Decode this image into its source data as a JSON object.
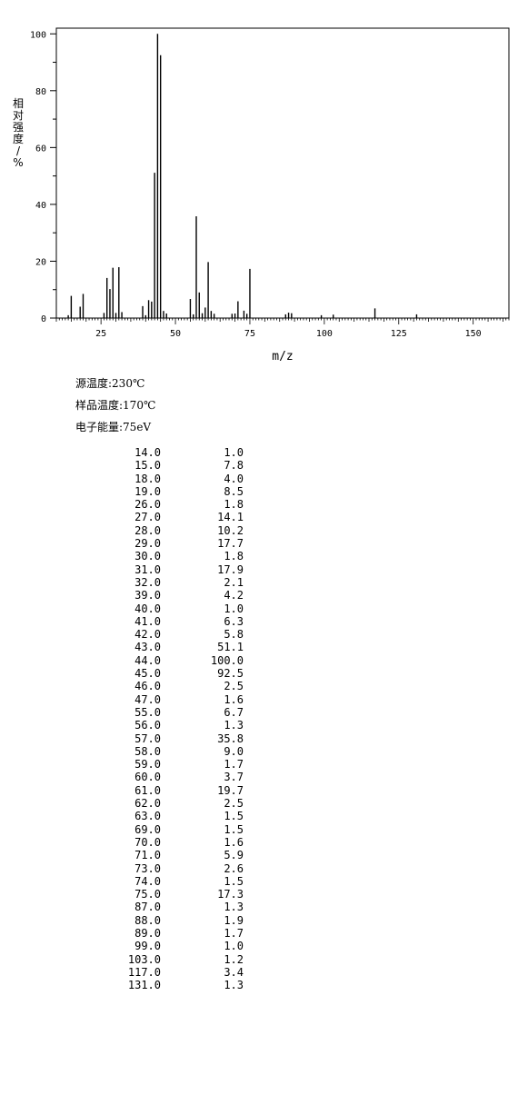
{
  "chart_data": {
    "type": "bar",
    "xlabel": "m/z",
    "ylabel": "相对强度/%",
    "xlim": [
      10,
      162
    ],
    "ylim": [
      0,
      102
    ],
    "x_ticks": [
      25,
      50,
      75,
      100,
      125,
      150
    ],
    "y_ticks": [
      0,
      20,
      40,
      60,
      80,
      100
    ],
    "grid": false,
    "x": [
      14,
      15,
      18,
      19,
      26,
      27,
      28,
      29,
      30,
      31,
      32,
      39,
      40,
      41,
      42,
      43,
      44,
      45,
      46,
      47,
      55,
      56,
      57,
      58,
      59,
      60,
      61,
      62,
      63,
      69,
      70,
      71,
      73,
      74,
      75,
      87,
      88,
      89,
      99,
      103,
      117,
      131
    ],
    "values": [
      1.0,
      7.8,
      4.0,
      8.5,
      1.8,
      14.1,
      10.2,
      17.7,
      1.8,
      17.9,
      2.1,
      4.2,
      1.0,
      6.3,
      5.8,
      51.1,
      100.0,
      92.5,
      2.5,
      1.6,
      6.7,
      1.3,
      35.8,
      9.0,
      1.7,
      3.7,
      19.7,
      2.5,
      1.5,
      1.5,
      1.6,
      5.9,
      2.6,
      1.5,
      17.3,
      1.3,
      1.9,
      1.7,
      1.0,
      1.2,
      3.4,
      1.3
    ]
  },
  "info": {
    "source_temp": "源温度:230℃",
    "sample_temp": "样品温度:170℃",
    "electron_energy": "电子能量:75eV"
  },
  "table": {
    "rows": [
      [
        "14.0",
        "1.0"
      ],
      [
        "15.0",
        "7.8"
      ],
      [
        "18.0",
        "4.0"
      ],
      [
        "19.0",
        "8.5"
      ],
      [
        "26.0",
        "1.8"
      ],
      [
        "27.0",
        "14.1"
      ],
      [
        "28.0",
        "10.2"
      ],
      [
        "29.0",
        "17.7"
      ],
      [
        "30.0",
        "1.8"
      ],
      [
        "31.0",
        "17.9"
      ],
      [
        "32.0",
        "2.1"
      ],
      [
        "39.0",
        "4.2"
      ],
      [
        "40.0",
        "1.0"
      ],
      [
        "41.0",
        "6.3"
      ],
      [
        "42.0",
        "5.8"
      ],
      [
        "43.0",
        "51.1"
      ],
      [
        "44.0",
        "100.0"
      ],
      [
        "45.0",
        "92.5"
      ],
      [
        "46.0",
        "2.5"
      ],
      [
        "47.0",
        "1.6"
      ],
      [
        "55.0",
        "6.7"
      ],
      [
        "56.0",
        "1.3"
      ],
      [
        "57.0",
        "35.8"
      ],
      [
        "58.0",
        "9.0"
      ],
      [
        "59.0",
        "1.7"
      ],
      [
        "60.0",
        "3.7"
      ],
      [
        "61.0",
        "19.7"
      ],
      [
        "62.0",
        "2.5"
      ],
      [
        "63.0",
        "1.5"
      ],
      [
        "69.0",
        "1.5"
      ],
      [
        "70.0",
        "1.6"
      ],
      [
        "71.0",
        "5.9"
      ],
      [
        "73.0",
        "2.6"
      ],
      [
        "74.0",
        "1.5"
      ],
      [
        "75.0",
        "17.3"
      ],
      [
        "87.0",
        "1.3"
      ],
      [
        "88.0",
        "1.9"
      ],
      [
        "89.0",
        "1.7"
      ],
      [
        "99.0",
        "1.0"
      ],
      [
        "103.0",
        "1.2"
      ],
      [
        "117.0",
        "3.4"
      ],
      [
        "131.0",
        "1.3"
      ]
    ]
  }
}
